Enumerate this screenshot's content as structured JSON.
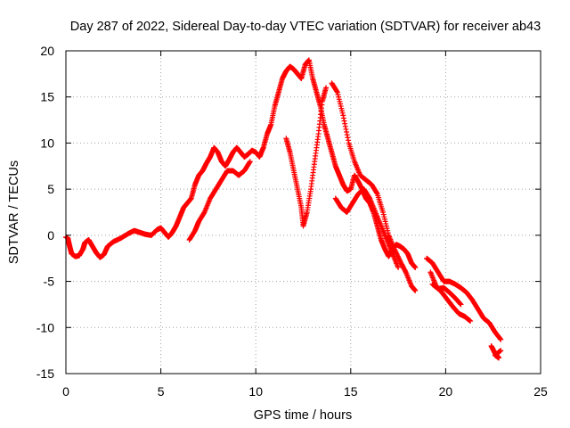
{
  "chart_data": {
    "type": "scatter",
    "title": "Day 287 of 2022, Sidereal Day-to-day VTEC variation (SDTVAR) for receiver ab43",
    "xlabel": "GPS time / hours",
    "ylabel": "SDTVAR / TECUs",
    "xlim": [
      0,
      25
    ],
    "ylim": [
      -15,
      20
    ],
    "xticks": [
      "0",
      "5",
      "10",
      "15",
      "20",
      "25"
    ],
    "yticks": [
      "-15",
      "-10",
      "-5",
      "0",
      "5",
      "10",
      "15",
      "20"
    ],
    "grid": true,
    "marker": "+",
    "series": [
      {
        "name": "SDTVAR",
        "color": "#ff0000",
        "tracks": [
          [
            [
              0.0,
              -0.2
            ],
            [
              0.1,
              -0.3
            ],
            [
              0.2,
              -1.2
            ],
            [
              0.3,
              -2.0
            ],
            [
              0.5,
              -2.3
            ],
            [
              0.7,
              -2.2
            ],
            [
              0.9,
              -1.5
            ],
            [
              1.0,
              -0.8
            ],
            [
              1.2,
              -0.5
            ],
            [
              1.4,
              -1.2
            ],
            [
              1.6,
              -1.9
            ],
            [
              1.8,
              -2.4
            ],
            [
              2.0,
              -2.1
            ],
            [
              2.2,
              -1.2
            ],
            [
              2.5,
              -0.7
            ],
            [
              2.9,
              -0.3
            ],
            [
              3.3,
              0.2
            ],
            [
              3.6,
              0.5
            ],
            [
              3.9,
              0.3
            ],
            [
              4.2,
              0.1
            ],
            [
              4.5,
              0.0
            ],
            [
              4.8,
              0.6
            ],
            [
              5.0,
              0.8
            ],
            [
              5.2,
              0.3
            ],
            [
              5.4,
              -0.2
            ],
            [
              5.6,
              0.3
            ],
            [
              5.8,
              1.0
            ],
            [
              6.0,
              2.0
            ],
            [
              6.2,
              3.0
            ],
            [
              6.4,
              3.5
            ],
            [
              6.6,
              4.0
            ],
            [
              6.8,
              5.5
            ],
            [
              7.0,
              6.5
            ],
            [
              7.2,
              7.0
            ],
            [
              7.4,
              7.8
            ],
            [
              7.6,
              8.5
            ],
            [
              7.8,
              9.5
            ],
            [
              8.0,
              9.0
            ],
            [
              8.2,
              8.0
            ],
            [
              8.4,
              7.5
            ],
            [
              8.6,
              8.2
            ],
            [
              8.8,
              9.0
            ],
            [
              9.0,
              9.5
            ],
            [
              9.2,
              9.0
            ],
            [
              9.4,
              8.5
            ],
            [
              9.6,
              8.8
            ],
            [
              9.8,
              9.2
            ],
            [
              10.0,
              9.0
            ],
            [
              10.2,
              8.5
            ],
            [
              10.4,
              9.5
            ],
            [
              10.6,
              11.0
            ],
            [
              10.8,
              12.0
            ],
            [
              11.0,
              14.0
            ],
            [
              11.2,
              15.5
            ],
            [
              11.4,
              17.0
            ],
            [
              11.6,
              17.8
            ],
            [
              11.8,
              18.3
            ],
            [
              12.0,
              18.0
            ],
            [
              12.2,
              17.5
            ],
            [
              12.4,
              17.0
            ],
            [
              12.6,
              18.5
            ],
            [
              12.8,
              19.0
            ],
            [
              13.0,
              17.0
            ],
            [
              13.2,
              15.5
            ],
            [
              13.4,
              14.0
            ],
            [
              13.6,
              12.0
            ],
            [
              13.8,
              10.5
            ],
            [
              14.0,
              9.0
            ],
            [
              14.2,
              7.5
            ],
            [
              14.4,
              6.5
            ],
            [
              14.6,
              5.5
            ],
            [
              14.8,
              4.8
            ],
            [
              15.0,
              5.0
            ],
            [
              15.2,
              6.5
            ],
            [
              15.4,
              5.8
            ],
            [
              15.6,
              5.0
            ],
            [
              15.8,
              4.0
            ],
            [
              16.0,
              3.5
            ],
            [
              16.2,
              2.5
            ],
            [
              16.4,
              1.0
            ],
            [
              16.6,
              -0.5
            ],
            [
              16.8,
              -1.5
            ],
            [
              17.0,
              -2.3
            ],
            [
              17.2,
              -1.5
            ],
            [
              17.4,
              -1.0
            ],
            [
              17.6,
              -1.2
            ],
            [
              17.8,
              -1.5
            ],
            [
              18.0,
              -2.0
            ],
            [
              18.2,
              -3.0
            ],
            [
              18.4,
              -3.5
            ]
          ],
          [
            [
              11.6,
              10.5
            ],
            [
              11.8,
              9.0
            ],
            [
              12.0,
              7.0
            ],
            [
              12.2,
              5.0
            ],
            [
              12.4,
              3.0
            ],
            [
              12.5,
              1.0
            ],
            [
              12.7,
              2.5
            ],
            [
              12.9,
              5.0
            ],
            [
              13.1,
              8.0
            ],
            [
              13.3,
              11.0
            ],
            [
              13.5,
              14.5
            ],
            [
              13.7,
              16.0
            ]
          ],
          [
            [
              6.5,
              -0.5
            ],
            [
              6.8,
              0.5
            ],
            [
              7.0,
              1.5
            ],
            [
              7.3,
              2.5
            ],
            [
              7.6,
              4.0
            ],
            [
              7.9,
              5.0
            ],
            [
              8.2,
              6.0
            ],
            [
              8.5,
              7.0
            ],
            [
              8.8,
              7.0
            ],
            [
              9.1,
              6.5
            ],
            [
              9.4,
              7.0
            ],
            [
              9.7,
              8.0
            ]
          ],
          [
            [
              14.0,
              16.5
            ],
            [
              14.3,
              15.5
            ],
            [
              14.6,
              13.0
            ],
            [
              14.9,
              10.0
            ],
            [
              15.2,
              8.0
            ],
            [
              15.5,
              6.5
            ],
            [
              15.8,
              6.0
            ],
            [
              16.1,
              5.5
            ],
            [
              16.4,
              4.5
            ],
            [
              16.7,
              2.5
            ],
            [
              17.0,
              0.0
            ],
            [
              17.3,
              -1.5
            ],
            [
              17.6,
              -2.8
            ],
            [
              17.9,
              -4.0
            ],
            [
              18.2,
              -5.5
            ],
            [
              18.4,
              -6.0
            ]
          ],
          [
            [
              14.2,
              4.0
            ],
            [
              14.5,
              3.0
            ],
            [
              14.8,
              2.5
            ],
            [
              15.1,
              3.5
            ],
            [
              15.4,
              4.5
            ],
            [
              15.7,
              5.0
            ],
            [
              16.0,
              4.0
            ],
            [
              16.3,
              2.5
            ],
            [
              16.6,
              1.0
            ],
            [
              16.9,
              -0.5
            ],
            [
              17.2,
              -2.0
            ],
            [
              17.5,
              -3.5
            ]
          ],
          [
            [
              19.0,
              -2.5
            ],
            [
              19.3,
              -3.0
            ],
            [
              19.6,
              -4.0
            ],
            [
              19.9,
              -5.0
            ],
            [
              20.2,
              -5.0
            ],
            [
              20.5,
              -5.3
            ],
            [
              20.8,
              -5.7
            ],
            [
              21.1,
              -6.2
            ],
            [
              21.4,
              -7.0
            ],
            [
              21.7,
              -8.0
            ],
            [
              22.0,
              -9.0
            ],
            [
              22.3,
              -9.5
            ],
            [
              22.6,
              -10.5
            ],
            [
              22.9,
              -11.3
            ]
          ],
          [
            [
              19.2,
              -4.0
            ],
            [
              19.5,
              -5.5
            ],
            [
              19.8,
              -6.2
            ],
            [
              20.1,
              -7.0
            ],
            [
              20.4,
              -7.8
            ],
            [
              20.7,
              -8.5
            ],
            [
              21.0,
              -8.8
            ],
            [
              21.3,
              -9.3
            ]
          ],
          [
            [
              19.3,
              -5.3
            ],
            [
              19.6,
              -5.8
            ],
            [
              19.9,
              -5.7
            ],
            [
              20.2,
              -6.2
            ],
            [
              20.5,
              -6.8
            ],
            [
              20.8,
              -7.5
            ]
          ],
          [
            [
              22.4,
              -12.0
            ],
            [
              22.6,
              -12.8
            ],
            [
              22.8,
              -13.3
            ],
            [
              22.6,
              -13.0
            ],
            [
              22.9,
              -12.5
            ]
          ]
        ]
      }
    ]
  }
}
